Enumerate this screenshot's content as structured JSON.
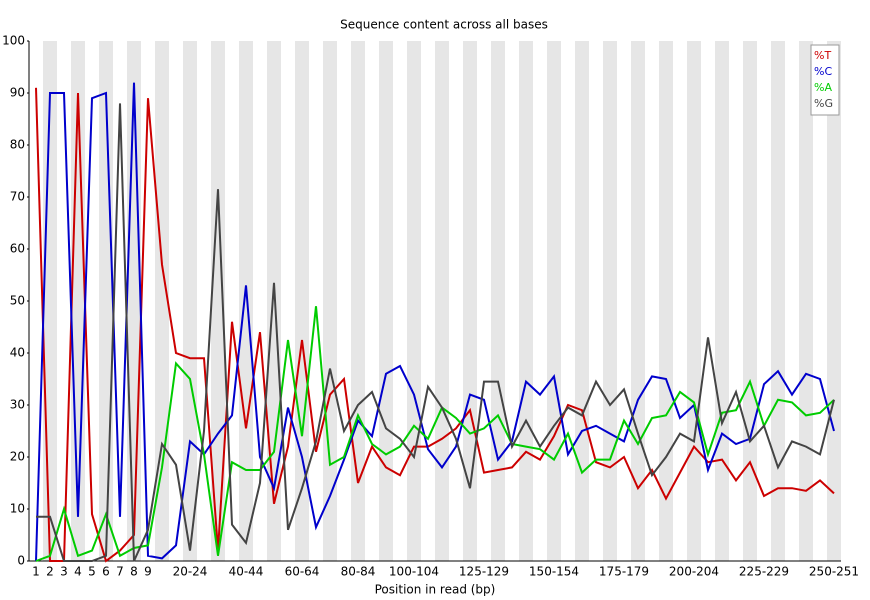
{
  "chart_data": {
    "type": "line",
    "title": "Sequence content across all bases",
    "x_label": "Position in read (bp)",
    "categories": [
      "1",
      "2",
      "3",
      "4",
      "5",
      "6",
      "7",
      "8",
      "9",
      null,
      null,
      "20-24",
      null,
      null,
      null,
      "40-44",
      null,
      null,
      null,
      "60-64",
      null,
      null,
      null,
      "80-84",
      null,
      null,
      null,
      "100-104",
      null,
      null,
      null,
      null,
      "125-129",
      null,
      null,
      null,
      null,
      "150-154",
      null,
      null,
      null,
      null,
      "175-179",
      null,
      null,
      null,
      null,
      "200-204",
      null,
      null,
      null,
      null,
      "225-229",
      null,
      null,
      null,
      null,
      "250-251"
    ],
    "series": [
      {
        "name": "%T",
        "color": "#cc0000",
        "values": [
          91,
          0,
          0,
          90,
          9,
          0,
          2,
          5,
          89,
          57,
          40,
          39,
          39,
          2,
          46,
          25.5,
          44,
          11,
          22,
          42.5,
          21,
          32,
          35,
          15,
          22,
          18,
          16.5,
          22,
          22,
          23.5,
          25.5,
          29,
          17,
          17.5,
          18,
          21,
          19.5,
          24,
          30,
          29,
          19,
          18,
          20,
          14,
          17.5,
          12,
          17,
          22,
          19,
          19.5,
          15.5,
          19,
          12.5,
          14,
          14,
          13.5,
          15.5,
          13
        ]
      },
      {
        "name": "%C",
        "color": "#0000cc",
        "values": [
          0,
          90,
          90,
          8.5,
          89,
          90,
          8.5,
          92,
          1,
          0.5,
          3,
          23,
          20.5,
          24.5,
          28,
          53,
          20,
          14,
          29.5,
          20,
          6.5,
          12.5,
          19.5,
          27,
          24,
          36,
          37.5,
          32,
          21.5,
          18,
          22,
          32,
          31,
          19.5,
          23,
          34.5,
          32,
          35.5,
          20.5,
          25,
          26,
          24.5,
          23,
          31,
          35.5,
          35,
          27.5,
          30,
          17.5,
          24.5,
          22.5,
          23.5,
          34,
          36.5,
          32,
          36,
          35,
          25
        ]
      },
      {
        "name": "%A",
        "color": "#00cc00",
        "values": [
          0,
          1,
          10,
          1,
          2,
          9,
          1,
          2.5,
          3,
          18,
          38,
          35,
          20.5,
          1,
          19,
          17.5,
          17.5,
          21,
          42.5,
          24,
          49,
          18.5,
          20,
          28,
          22.5,
          20.5,
          22,
          26,
          23.5,
          29.5,
          27.5,
          24.5,
          25.5,
          28,
          22.5,
          22,
          21.5,
          19.5,
          24.5,
          17,
          19.5,
          19.5,
          27,
          22.5,
          27.5,
          28,
          32.5,
          30.5,
          20.5,
          28.5,
          29,
          34.5,
          26,
          31,
          30.5,
          28,
          28.5,
          31
        ]
      },
      {
        "name": "%G",
        "color": "#444444",
        "values": [
          8.5,
          8.5,
          0,
          0,
          0,
          1,
          88,
          0,
          6,
          22.5,
          18.5,
          2,
          25,
          71.5,
          7,
          3.5,
          15,
          53.5,
          6,
          14,
          23,
          37,
          25,
          30,
          32.5,
          25.5,
          23.5,
          20,
          33.5,
          29.5,
          23.5,
          14,
          34.5,
          34.5,
          22,
          27,
          22,
          26,
          29.5,
          28,
          34.5,
          30,
          33,
          24.5,
          16.5,
          20,
          24.5,
          23,
          43,
          26.5,
          32.5,
          23,
          26,
          18,
          23,
          22,
          20.5,
          31
        ]
      }
    ],
    "ylim": [
      0,
      100
    ],
    "yticks": [
      0,
      10,
      20,
      30,
      40,
      50,
      60,
      70,
      80,
      90,
      100
    ],
    "stripes": true,
    "legend": "top-right"
  }
}
